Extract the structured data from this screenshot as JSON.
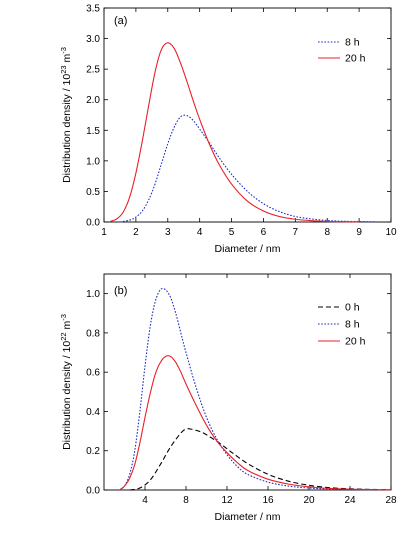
{
  "chart_data": [
    {
      "type": "line",
      "panel_label": "(a)",
      "xlabel": "Diameter / nm",
      "ylabel_main": "Distribution density / 10",
      "ylabel_exp": "23",
      "ylabel_unit": " m",
      "ylabel_unit_exp": "-3",
      "xlim": [
        1,
        10
      ],
      "ylim": [
        0,
        3.5
      ],
      "xticks": [
        1,
        2,
        3,
        4,
        5,
        6,
        7,
        8,
        9,
        10
      ],
      "yticks": [
        "0.0",
        "0.5",
        "1.0",
        "1.5",
        "2.0",
        "2.5",
        "3.0",
        "3.5"
      ],
      "legend_position": "top-right",
      "series": [
        {
          "name": "8 h",
          "color": "#1f2fbf",
          "style": "dotted",
          "x": [
            1.5,
            1.8,
            2.0,
            2.2,
            2.4,
            2.6,
            2.8,
            3.0,
            3.2,
            3.4,
            3.6,
            3.8,
            4.0,
            4.3,
            4.6,
            5.0,
            5.5,
            6.0,
            6.5,
            7.0,
            7.5,
            8.0,
            8.5,
            9.0,
            9.5
          ],
          "y": [
            0.0,
            0.03,
            0.08,
            0.18,
            0.36,
            0.62,
            0.95,
            1.28,
            1.55,
            1.72,
            1.74,
            1.66,
            1.52,
            1.3,
            1.06,
            0.78,
            0.5,
            0.3,
            0.17,
            0.09,
            0.05,
            0.025,
            0.012,
            0.006,
            0.003
          ]
        },
        {
          "name": "20 h",
          "color": "#e8202a",
          "style": "solid",
          "x": [
            1.2,
            1.4,
            1.6,
            1.8,
            2.0,
            2.2,
            2.4,
            2.6,
            2.8,
            3.0,
            3.2,
            3.4,
            3.6,
            3.8,
            4.0,
            4.3,
            4.6,
            5.0,
            5.5,
            6.0,
            6.5,
            7.0,
            7.5,
            8.0,
            8.5,
            9.0
          ],
          "y": [
            0.01,
            0.05,
            0.16,
            0.4,
            0.8,
            1.32,
            1.9,
            2.45,
            2.82,
            2.93,
            2.84,
            2.6,
            2.3,
            1.98,
            1.68,
            1.28,
            0.95,
            0.62,
            0.34,
            0.18,
            0.09,
            0.045,
            0.022,
            0.01,
            0.005,
            0.002
          ]
        }
      ]
    },
    {
      "type": "line",
      "panel_label": "(b)",
      "xlabel": "Diameter / nm",
      "ylabel_main": "Distribution density / 10",
      "ylabel_exp": "22",
      "ylabel_unit": " m",
      "ylabel_unit_exp": "-3",
      "xlim": [
        0,
        28
      ],
      "ylim": [
        0,
        1.1
      ],
      "xticks": [
        4,
        8,
        12,
        16,
        20,
        24,
        28
      ],
      "yticks": [
        "0.0",
        "0.2",
        "0.4",
        "0.6",
        "0.8",
        "1.0"
      ],
      "legend_position": "top-right",
      "series": [
        {
          "name": "0 h",
          "color": "#000000",
          "style": "dashed",
          "x": [
            2.5,
            3.5,
            4.5,
            5.5,
            6.5,
            7.5,
            8.0,
            8.5,
            9.5,
            10.5,
            11.5,
            12.5,
            14,
            16,
            18,
            20,
            22,
            24,
            26,
            28
          ],
          "y": [
            0.0,
            0.01,
            0.05,
            0.13,
            0.22,
            0.29,
            0.31,
            0.31,
            0.295,
            0.265,
            0.23,
            0.19,
            0.135,
            0.08,
            0.045,
            0.024,
            0.012,
            0.006,
            0.003,
            0.001
          ]
        },
        {
          "name": "8 h",
          "color": "#1f2fbf",
          "style": "dotted",
          "x": [
            1.5,
            2.0,
            2.5,
            3.0,
            3.5,
            4.0,
            4.5,
            5.0,
            5.5,
            6.0,
            6.5,
            7.0,
            7.5,
            8.0,
            9.0,
            10.0,
            11.0,
            12.0,
            13.0,
            14.0,
            16.0,
            18.0,
            20.0,
            22.0,
            24.0,
            26.0
          ],
          "y": [
            0.0,
            0.02,
            0.08,
            0.2,
            0.4,
            0.63,
            0.83,
            0.96,
            1.02,
            1.02,
            0.98,
            0.9,
            0.8,
            0.7,
            0.52,
            0.37,
            0.26,
            0.18,
            0.12,
            0.08,
            0.04,
            0.02,
            0.01,
            0.005,
            0.002,
            0.001
          ]
        },
        {
          "name": "20 h",
          "color": "#e8202a",
          "style": "solid",
          "x": [
            1.5,
            2.0,
            2.5,
            3.0,
            3.5,
            4.0,
            4.5,
            5.0,
            5.5,
            6.0,
            6.5,
            7.0,
            7.5,
            8.0,
            9.0,
            10.0,
            11.0,
            12.0,
            13.0,
            14.0,
            16.0,
            18.0,
            20.0,
            22.0,
            24.0,
            26.0,
            28.0
          ],
          "y": [
            0.0,
            0.02,
            0.06,
            0.13,
            0.24,
            0.37,
            0.49,
            0.59,
            0.65,
            0.68,
            0.68,
            0.65,
            0.6,
            0.54,
            0.43,
            0.33,
            0.25,
            0.19,
            0.14,
            0.1,
            0.055,
            0.03,
            0.016,
            0.008,
            0.004,
            0.002,
            0.001
          ]
        }
      ]
    }
  ]
}
